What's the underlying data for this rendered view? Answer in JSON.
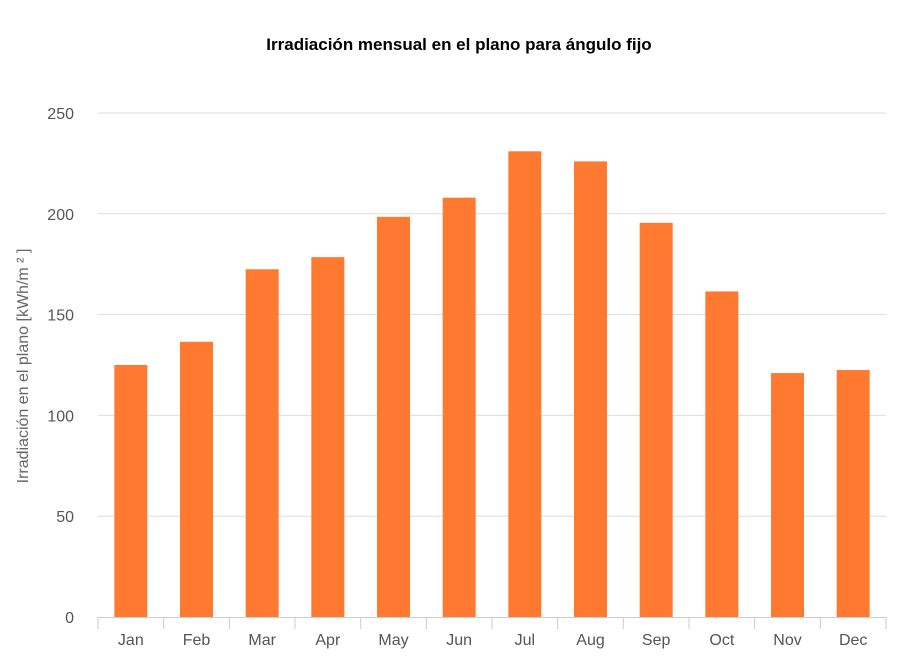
{
  "chart_data": {
    "type": "bar",
    "title": "Irradiación mensual en el plano para ángulo fijo",
    "xlabel": "",
    "ylabel": "Irradiación en el plano [kWh/m ² ]",
    "categories": [
      "Jan",
      "Feb",
      "Mar",
      "Apr",
      "May",
      "Jun",
      "Jul",
      "Aug",
      "Sep",
      "Oct",
      "Nov",
      "Dec"
    ],
    "values": [
      125,
      136.5,
      172.5,
      178.5,
      198.5,
      208,
      231,
      226,
      195.5,
      161.5,
      121,
      122.5
    ],
    "ylim": [
      0,
      250
    ],
    "yticks": [
      0,
      50,
      100,
      150,
      200,
      250
    ],
    "grid": true,
    "legend": "none",
    "bar_color": "#ff7a30",
    "grid_color": "#dddddd"
  }
}
